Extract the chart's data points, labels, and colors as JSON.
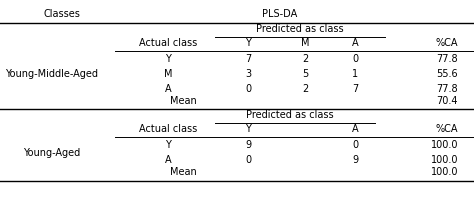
{
  "title_col1": "Classes",
  "title_col2": "PLS-DA",
  "section1_label": "Young-Middle-Aged",
  "section2_label": "Young-Aged",
  "predicted_label": "Predicted as class",
  "actual_label": "Actual class",
  "pct_label": "%CA",
  "section1": {
    "col_headers": [
      "Y",
      "M",
      "A"
    ],
    "rows": [
      {
        "actual": "Y",
        "values": [
          "7",
          "2",
          "0"
        ],
        "pct": "77.8"
      },
      {
        "actual": "M",
        "values": [
          "3",
          "5",
          "1"
        ],
        "pct": "55.6"
      },
      {
        "actual": "A",
        "values": [
          "0",
          "2",
          "7"
        ],
        "pct": "77.8"
      }
    ],
    "mean_pct": "70.4"
  },
  "section2": {
    "col_headers": [
      "Y",
      "A"
    ],
    "rows": [
      {
        "actual": "Y",
        "values": [
          "9",
          "0"
        ],
        "pct": "100.0"
      },
      {
        "actual": "A",
        "values": [
          "0",
          "9"
        ],
        "pct": "100.0"
      }
    ],
    "mean_pct": "100.0"
  },
  "bg_color": "#ffffff",
  "text_color": "#000000",
  "fontsize": 7.0
}
